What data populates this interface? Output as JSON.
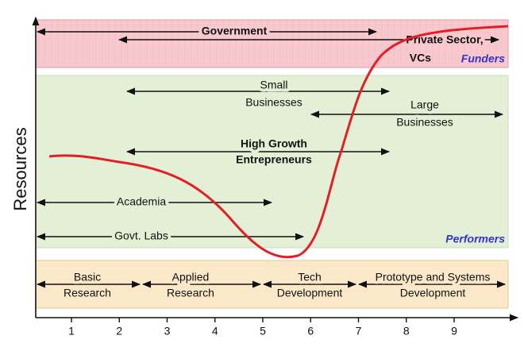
{
  "y_axis_label": "Resources",
  "x_ticks": [
    1,
    2,
    3,
    4,
    5,
    6,
    7,
    8,
    9
  ],
  "funders": {
    "label": "Funders",
    "government": "Government",
    "private_sector": [
      "Private Sector,",
      "VCs"
    ]
  },
  "performers": {
    "label": "Performers",
    "small_businesses": [
      "Small",
      "Businesses"
    ],
    "large_businesses": [
      "Large",
      "Businesses"
    ],
    "high_growth": [
      "High Growth",
      "Entrepreneurs"
    ],
    "academia": "Academia",
    "govt_labs": "Govt. Labs"
  },
  "phases": [
    [
      "Basic",
      "Research"
    ],
    [
      "Applied",
      "Research"
    ],
    [
      "Tech",
      "Development"
    ],
    [
      "Prototype and Systems",
      "Development"
    ]
  ]
}
